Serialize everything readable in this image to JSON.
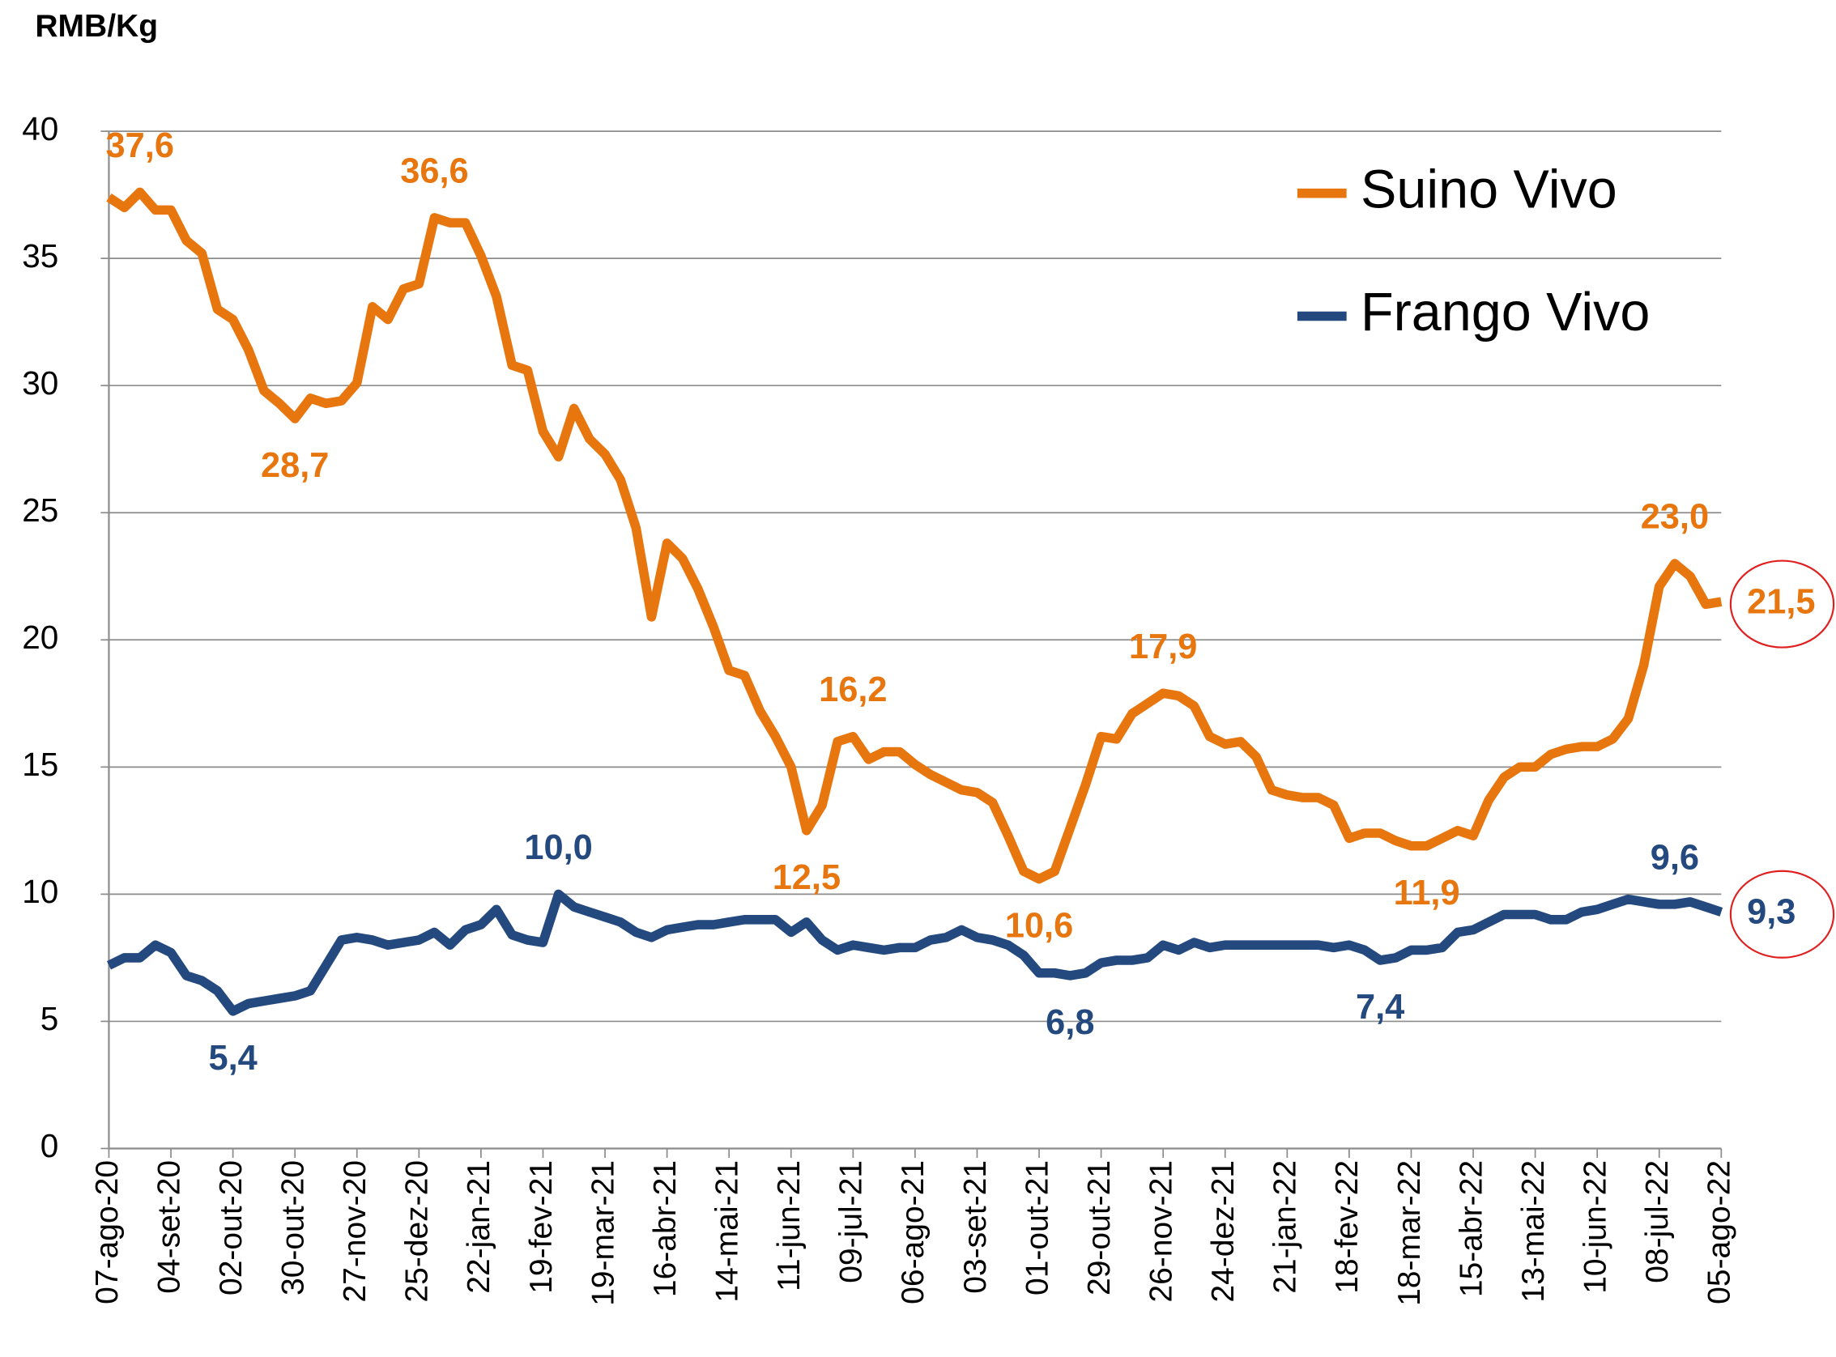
{
  "chart_data": {
    "type": "line",
    "y_label": "RMB/Kg",
    "categories": [
      "07-ago-20",
      null,
      null,
      null,
      "04-set-20",
      null,
      null,
      null,
      "02-out-20",
      null,
      null,
      null,
      "30-out-20",
      null,
      null,
      null,
      "27-nov-20",
      null,
      null,
      null,
      "25-dez-20",
      null,
      null,
      null,
      "22-jan-21",
      null,
      null,
      null,
      "19-fev-21",
      null,
      null,
      null,
      "19-mar-21",
      null,
      null,
      null,
      "16-abr-21",
      null,
      null,
      null,
      "14-mai-21",
      null,
      null,
      null,
      "11-jun-21",
      null,
      null,
      null,
      "09-jul-21",
      null,
      null,
      null,
      "06-ago-21",
      null,
      null,
      null,
      "03-set-21",
      null,
      null,
      null,
      "01-out-21",
      null,
      null,
      null,
      "29-out-21",
      null,
      null,
      null,
      "26-nov-21",
      null,
      null,
      null,
      "24-dez-21",
      null,
      null,
      null,
      "21-jan-22",
      null,
      null,
      null,
      "18-fev-22",
      null,
      null,
      null,
      "18-mar-22",
      null,
      null,
      null,
      "15-abr-22",
      null,
      null,
      null,
      "13-mai-22",
      null,
      null,
      null,
      "10-jun-22",
      null,
      null,
      null,
      "08-jul-22",
      null,
      null,
      null,
      "05-ago-22"
    ],
    "series": [
      {
        "name": "Suino Vivo",
        "color": "#e8760f",
        "values": [
          37.4,
          37.0,
          37.6,
          36.9,
          36.9,
          35.7,
          35.2,
          33.0,
          32.6,
          31.4,
          29.8,
          29.3,
          28.7,
          29.5,
          29.3,
          29.4,
          30.1,
          33.1,
          32.6,
          33.8,
          34.0,
          36.6,
          36.4,
          36.4,
          35.1,
          33.5,
          30.8,
          30.6,
          28.2,
          27.2,
          29.1,
          27.9,
          27.3,
          26.3,
          24.4,
          20.9,
          23.8,
          23.2,
          22.0,
          20.5,
          18.8,
          18.6,
          17.2,
          16.2,
          15.0,
          12.5,
          13.5,
          16.0,
          16.2,
          15.3,
          15.6,
          15.6,
          15.1,
          14.7,
          14.4,
          14.1,
          14.0,
          13.6,
          12.3,
          10.9,
          10.6,
          10.9,
          12.6,
          14.3,
          16.2,
          16.1,
          17.1,
          17.5,
          17.9,
          17.8,
          17.4,
          16.2,
          15.9,
          16.0,
          15.4,
          14.1,
          13.9,
          13.8,
          13.8,
          13.5,
          12.2,
          12.4,
          12.4,
          12.1,
          11.9,
          11.9,
          12.2,
          12.5,
          12.3,
          13.7,
          14.6,
          15.0,
          15.0,
          15.5,
          15.7,
          15.8,
          15.8,
          16.1,
          16.9,
          19.0,
          22.1,
          23.0,
          22.5,
          21.4,
          21.5
        ],
        "value_labels": [
          null,
          null,
          "37,6",
          null,
          null,
          null,
          null,
          null,
          null,
          null,
          null,
          null,
          "28,7",
          null,
          null,
          null,
          null,
          null,
          null,
          null,
          null,
          "36,6",
          null,
          null,
          null,
          null,
          null,
          null,
          null,
          null,
          null,
          null,
          null,
          null,
          null,
          null,
          null,
          null,
          null,
          null,
          null,
          null,
          null,
          null,
          null,
          "12,5",
          null,
          null,
          "16,2",
          null,
          null,
          null,
          null,
          null,
          null,
          null,
          null,
          null,
          null,
          null,
          "10,6",
          null,
          null,
          null,
          null,
          null,
          null,
          null,
          "17,9",
          null,
          null,
          null,
          null,
          null,
          null,
          null,
          null,
          null,
          null,
          null,
          null,
          null,
          null,
          null,
          null,
          "11,9",
          null,
          null,
          null,
          null,
          null,
          null,
          null,
          null,
          null,
          null,
          null,
          null,
          null,
          null,
          null,
          "23,0",
          null,
          null,
          "21,5"
        ]
      },
      {
        "name": "Frango Vivo",
        "color": "#24497f",
        "values": [
          7.2,
          7.5,
          7.5,
          8.0,
          7.7,
          6.8,
          6.6,
          6.2,
          5.4,
          5.7,
          5.8,
          5.9,
          6.0,
          6.2,
          7.2,
          8.2,
          8.3,
          8.2,
          8.0,
          8.1,
          8.2,
          8.5,
          8.0,
          8.6,
          8.8,
          9.4,
          8.4,
          8.2,
          8.1,
          10.0,
          9.5,
          9.3,
          9.1,
          8.9,
          8.5,
          8.3,
          8.6,
          8.7,
          8.8,
          8.8,
          8.9,
          9.0,
          9.0,
          9.0,
          8.5,
          8.9,
          8.2,
          7.8,
          8.0,
          7.9,
          7.8,
          7.9,
          7.9,
          8.2,
          8.3,
          8.6,
          8.3,
          8.2,
          8.0,
          7.6,
          6.9,
          6.9,
          6.8,
          6.9,
          7.3,
          7.4,
          7.4,
          7.5,
          8.0,
          7.8,
          8.1,
          7.9,
          8.0,
          8.0,
          8.0,
          8.0,
          8.0,
          8.0,
          8.0,
          7.9,
          8.0,
          7.8,
          7.4,
          7.5,
          7.8,
          7.8,
          7.9,
          8.5,
          8.6,
          8.9,
          9.2,
          9.2,
          9.2,
          9.0,
          9.0,
          9.3,
          9.4,
          9.6,
          9.8,
          9.7,
          9.6,
          9.6,
          9.7,
          9.5,
          9.3
        ],
        "value_labels": [
          null,
          null,
          null,
          null,
          null,
          null,
          null,
          null,
          "5,4",
          null,
          null,
          null,
          null,
          null,
          null,
          null,
          null,
          null,
          null,
          null,
          null,
          null,
          null,
          null,
          null,
          null,
          null,
          null,
          null,
          "10,0",
          null,
          null,
          null,
          null,
          null,
          null,
          null,
          null,
          null,
          null,
          null,
          null,
          null,
          null,
          null,
          null,
          null,
          null,
          null,
          null,
          null,
          null,
          null,
          null,
          null,
          null,
          null,
          null,
          null,
          null,
          null,
          null,
          "6,8",
          null,
          null,
          null,
          null,
          null,
          null,
          null,
          null,
          null,
          null,
          null,
          null,
          null,
          null,
          null,
          null,
          null,
          null,
          null,
          "7,4",
          null,
          null,
          null,
          null,
          null,
          null,
          null,
          null,
          null,
          null,
          null,
          null,
          null,
          null,
          null,
          null,
          null,
          null,
          "9,6",
          null,
          null,
          "9,3"
        ]
      }
    ],
    "ylim": [
      0,
      40
    ],
    "yticks": [
      0,
      5,
      10,
      15,
      20,
      25,
      30,
      35,
      40
    ],
    "grid": true,
    "legend": "top-right"
  }
}
